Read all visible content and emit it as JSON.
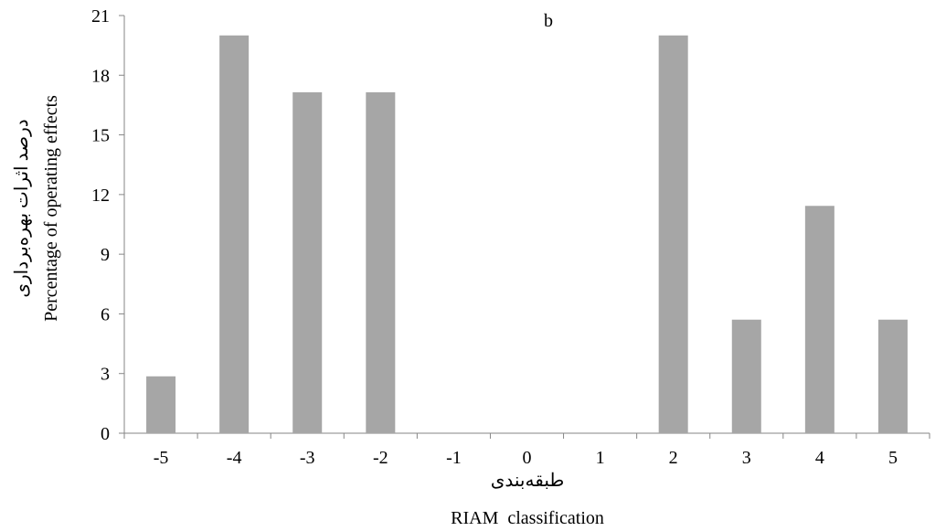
{
  "chart_data": {
    "type": "bar",
    "title": "b",
    "categories": [
      "-5",
      "-4",
      "-3",
      "-2",
      "-1",
      "0",
      "1",
      "2",
      "3",
      "4",
      "5"
    ],
    "values": [
      2.86,
      20.0,
      17.14,
      17.14,
      0,
      0,
      0,
      20.0,
      5.71,
      11.43,
      5.71
    ],
    "ylim": [
      0,
      21
    ],
    "yticks": [
      "0",
      "3",
      "6",
      "9",
      "12",
      "15",
      "18",
      "21"
    ],
    "xlabel_fa": "طبقه‌بندی",
    "xlabel_en": "RIAM  classification",
    "ylabel_fa": "درصد اثرات بهره‌برداری",
    "ylabel_en": "Percentage of operating effects",
    "bar_color": "#a6a6a6",
    "grid": false,
    "legend": "none"
  }
}
